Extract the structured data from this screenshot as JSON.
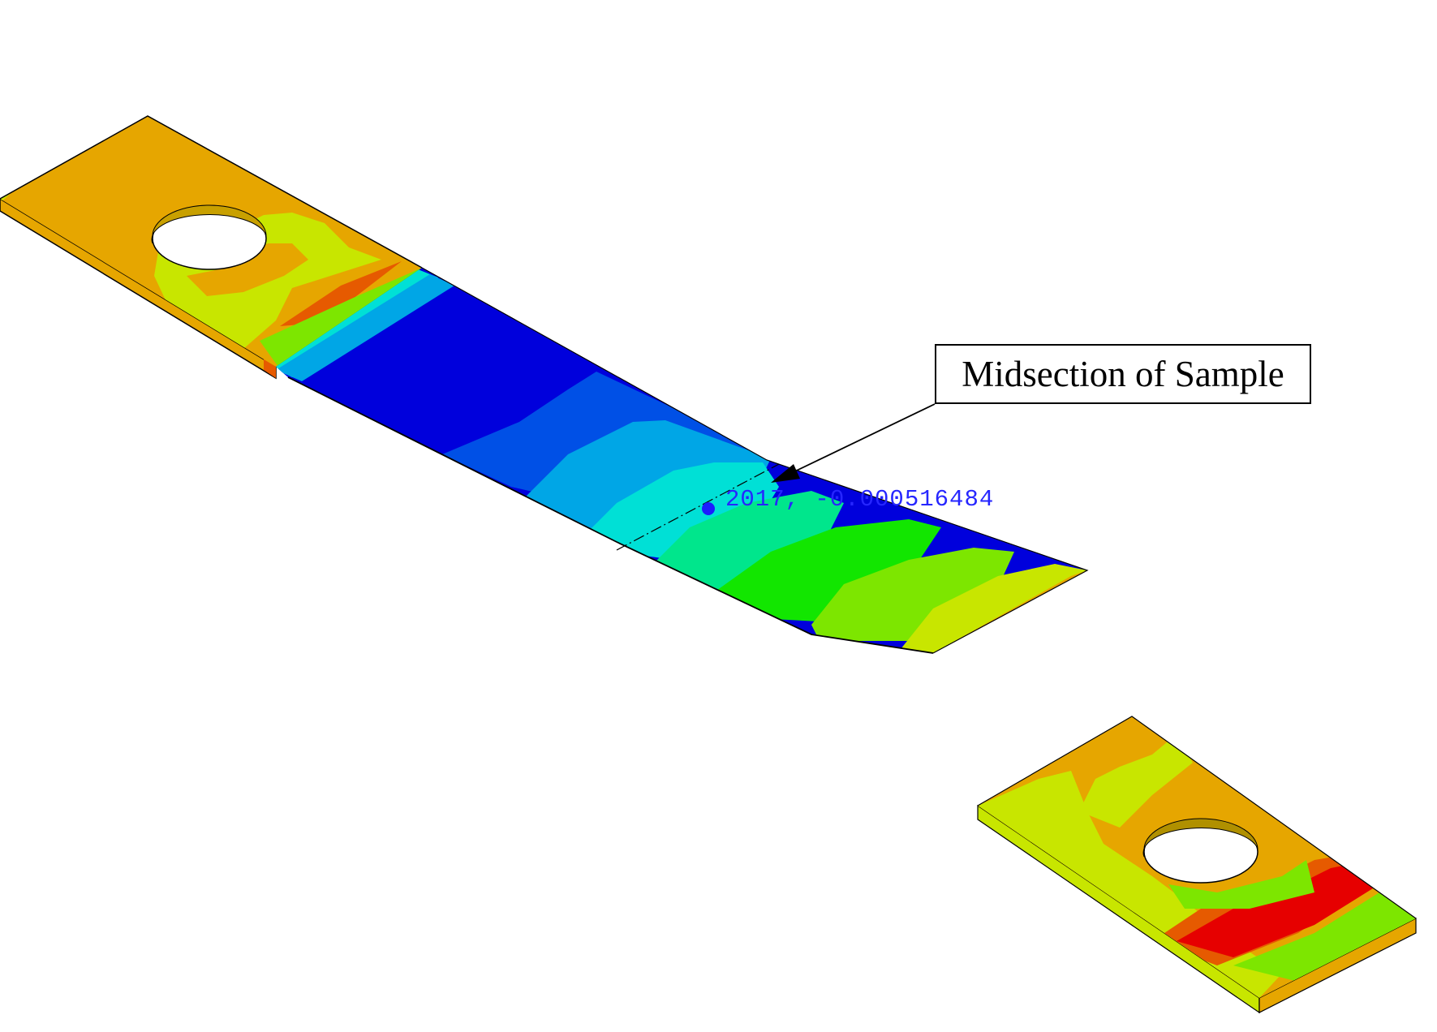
{
  "callout": {
    "label": "Midsection of Sample"
  },
  "probe": {
    "readout": "2017, -0.000516484"
  },
  "contour_colors": [
    "#0000dc",
    "#0050e6",
    "#00a6e6",
    "#00e0d6",
    "#00e68c",
    "#12e600",
    "#7de600",
    "#c8e600",
    "#e6a600",
    "#e65a00",
    "#e60000"
  ],
  "icons": {
    "probe_marker": "dot-icon",
    "callout_arrow": "arrow-icon"
  }
}
